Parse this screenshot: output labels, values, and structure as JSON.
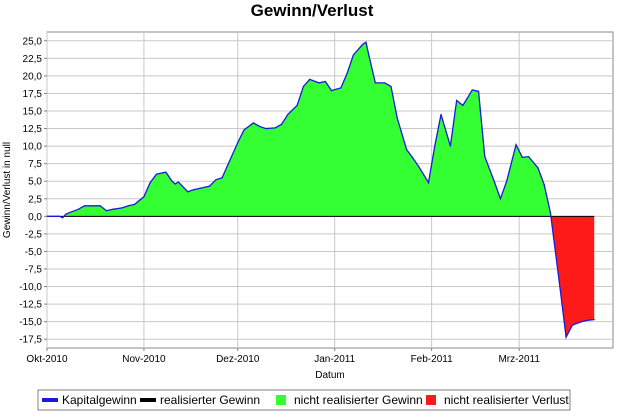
{
  "chart_data": {
    "type": "area",
    "title": "Gewinn/Verlust",
    "xlabel": "Datum",
    "ylabel": "Gewinn/Verlust in null",
    "ylim": [
      -18.75,
      26.25
    ],
    "y_ticks": [
      25.0,
      22.5,
      20.0,
      17.5,
      15.0,
      12.5,
      10.0,
      7.5,
      5.0,
      2.5,
      0.0,
      -2.5,
      -5.0,
      -7.5,
      -10.0,
      -12.5,
      -15.0,
      -17.5
    ],
    "y_tick_labels": [
      "25,0",
      "22,5",
      "20,0",
      "17,5",
      "15,0",
      "12,5",
      "10,0",
      "7,5",
      "5,0",
      "2,5",
      "0,0",
      "-2,5",
      "-5,0",
      "-7,5",
      "-10,0",
      "-12,5",
      "-15,0",
      "-17,5"
    ],
    "xlim": [
      "2010-10-01",
      "2011-03-31"
    ],
    "x_ticks": [
      "2010-10-01",
      "2010-11-01",
      "2010-12-01",
      "2011-01-01",
      "2011-02-01",
      "2011-03-01"
    ],
    "x_tick_labels": [
      "Okt-2010",
      "Nov-2010",
      "Dez-2010",
      "Jan-2011",
      "Feb-2011",
      "Mrz-2011"
    ],
    "grid": true,
    "legend_position": "bottom",
    "series": [
      {
        "name": "Kapitalgewinn",
        "color": "#1a1adc",
        "style": "line"
      },
      {
        "name": "realisierter Gewinn",
        "color": "#000000",
        "style": "line"
      },
      {
        "name": "nicht realisierter Gewinn",
        "color": "#33ff33",
        "style": "area"
      },
      {
        "name": "nicht realisierter Verlust",
        "color": "#ff1a1a",
        "style": "area"
      }
    ],
    "x": [
      "2010-10-01",
      "2010-10-05",
      "2010-10-06",
      "2010-10-07",
      "2010-10-08",
      "2010-10-11",
      "2010-10-13",
      "2010-10-15",
      "2010-10-18",
      "2010-10-20",
      "2010-10-22",
      "2010-10-25",
      "2010-10-27",
      "2010-10-29",
      "2010-11-01",
      "2010-11-03",
      "2010-11-05",
      "2010-11-08",
      "2010-11-10",
      "2010-11-11",
      "2010-11-12",
      "2010-11-15",
      "2010-11-17",
      "2010-11-19",
      "2010-11-22",
      "2010-11-24",
      "2010-11-26",
      "2010-11-29",
      "2010-12-01",
      "2010-12-03",
      "2010-12-06",
      "2010-12-08",
      "2010-12-10",
      "2010-12-13",
      "2010-12-15",
      "2010-12-17",
      "2010-12-20",
      "2010-12-22",
      "2010-12-24",
      "2010-12-27",
      "2010-12-29",
      "2010-12-31",
      "2011-01-03",
      "2011-01-05",
      "2011-01-07",
      "2011-01-10",
      "2011-01-11",
      "2011-01-12",
      "2011-01-14",
      "2011-01-17",
      "2011-01-19",
      "2011-01-21",
      "2011-01-24",
      "2011-01-26",
      "2011-01-28",
      "2011-01-31",
      "2011-02-02",
      "2011-02-04",
      "2011-02-07",
      "2011-02-09",
      "2011-02-11",
      "2011-02-14",
      "2011-02-16",
      "2011-02-18",
      "2011-02-21",
      "2011-02-23",
      "2011-02-25",
      "2011-02-28",
      "2011-03-02",
      "2011-03-04",
      "2011-03-07",
      "2011-03-09",
      "2011-03-11",
      "2011-03-14",
      "2011-03-16",
      "2011-03-18",
      "2011-03-21",
      "2011-03-23",
      "2011-03-25"
    ],
    "values": [
      0.0,
      0.0,
      -0.2,
      0.3,
      0.5,
      1.0,
      1.5,
      1.5,
      1.5,
      0.8,
      1.0,
      1.2,
      1.5,
      1.7,
      2.8,
      4.8,
      6.0,
      6.3,
      5.0,
      4.6,
      4.9,
      3.5,
      3.8,
      4.0,
      4.3,
      5.2,
      5.5,
      8.5,
      10.5,
      12.3,
      13.3,
      12.8,
      12.5,
      12.6,
      13.1,
      14.5,
      15.8,
      18.5,
      19.5,
      19.0,
      19.2,
      17.9,
      18.3,
      20.4,
      23.0,
      24.5,
      24.8,
      22.8,
      19.0,
      19.0,
      18.5,
      14.0,
      9.5,
      8.3,
      7.0,
      4.8,
      10.0,
      14.5,
      10.0,
      16.5,
      15.8,
      18.0,
      17.8,
      8.5,
      5.0,
      2.5,
      5.0,
      10.2,
      8.4,
      8.5,
      6.9,
      4.5,
      0.5,
      -10.0,
      -17.2,
      -15.5,
      -15.0,
      -14.8,
      -14.7
    ]
  }
}
